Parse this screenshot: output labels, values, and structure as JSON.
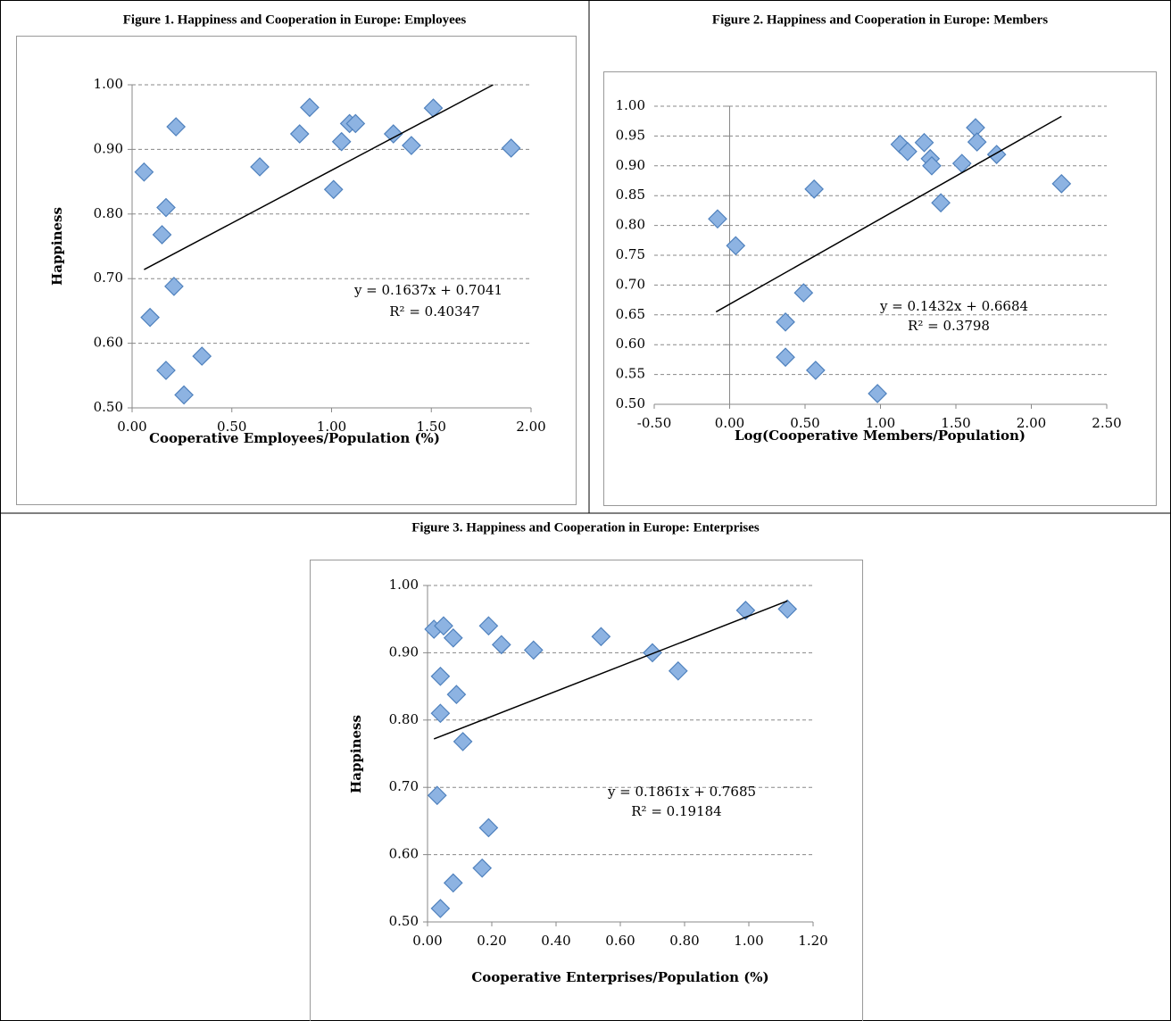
{
  "chart_data": [
    {
      "type": "scatter",
      "title": "Figure 1.  Happiness and Cooperation in Europe: Employees",
      "x_label": "Cooperative Employees/Population (%)",
      "y_label": "Happiness",
      "x": [
        0.06,
        0.22,
        0.17,
        0.15,
        0.21,
        0.09,
        0.17,
        0.35,
        0.26,
        0.64,
        0.84,
        0.89,
        1.01,
        1.05,
        1.09,
        1.12,
        1.31,
        1.4,
        1.51,
        1.9
      ],
      "values": [
        0.865,
        0.935,
        0.81,
        0.768,
        0.688,
        0.64,
        0.558,
        0.58,
        0.52,
        0.873,
        0.924,
        0.965,
        0.838,
        0.912,
        0.94,
        0.94,
        0.924,
        0.906,
        0.964,
        0.902
      ],
      "color": "#8db3e2",
      "trendline": {
        "x": [
          0.06,
          1.81
        ],
        "y": [
          0.714,
          1.0
        ]
      },
      "annotations": [
        "y = 0.1637x + 0.7041",
        "R² = 0.40347"
      ],
      "xlim": [
        0,
        2
      ],
      "ylim": [
        0.5,
        1.0
      ],
      "xticks": [
        {
          "value": 0,
          "label": "0.00"
        },
        {
          "value": 0.5,
          "label": "0.50"
        },
        {
          "value": 1,
          "label": "1.00"
        },
        {
          "value": 1.5,
          "label": "1.50"
        },
        {
          "value": 2,
          "label": "2.00"
        }
      ],
      "yticks": [
        {
          "value": 0.5,
          "label": "0.50"
        },
        {
          "value": 0.6,
          "label": "0.60"
        },
        {
          "value": 0.7,
          "label": "0.70"
        },
        {
          "value": 0.8,
          "label": "0.80"
        },
        {
          "value": 0.9,
          "label": "0.90"
        },
        {
          "value": 1.0,
          "label": "1.00"
        }
      ],
      "grid": true
    },
    {
      "type": "scatter",
      "title": "Figure 2. Happiness and Cooperation in Europe: Members",
      "x_label": "Log(Cooperative Members/Population)",
      "x": [
        -0.08,
        0.04,
        0.56,
        0.49,
        0.37,
        0.37,
        0.57,
        0.98,
        1.13,
        1.18,
        1.29,
        1.33,
        1.34,
        1.4,
        1.54,
        1.63,
        1.64,
        1.77,
        2.2
      ],
      "values": [
        0.811,
        0.766,
        0.861,
        0.687,
        0.638,
        0.579,
        0.557,
        0.518,
        0.936,
        0.924,
        0.939,
        0.912,
        0.9,
        0.838,
        0.904,
        0.964,
        0.94,
        0.919,
        0.87
      ],
      "color": "#8db3e2",
      "trendline": {
        "x": [
          -0.09,
          2.2
        ],
        "y": [
          0.655,
          0.983
        ]
      },
      "annotations": [
        "y = 0.1432x + 0.6684",
        "R² = 0.3798"
      ],
      "xlim": [
        -0.5,
        2.5
      ],
      "ylim": [
        0.5,
        1.0
      ],
      "y_axis_crosses": 0,
      "xticks": [
        {
          "value": -0.5,
          "label": "-0.50"
        },
        {
          "value": 0,
          "label": "0.00"
        },
        {
          "value": 0.5,
          "label": "0.50"
        },
        {
          "value": 1,
          "label": "1.00"
        },
        {
          "value": 1.5,
          "label": "1.50"
        },
        {
          "value": 2,
          "label": "2.00"
        },
        {
          "value": 2.5,
          "label": "2.50"
        }
      ],
      "yticks": [
        {
          "value": 0.5,
          "label": "0.50"
        },
        {
          "value": 0.55,
          "label": "0.55"
        },
        {
          "value": 0.6,
          "label": "0.60"
        },
        {
          "value": 0.65,
          "label": "0.65"
        },
        {
          "value": 0.7,
          "label": "0.70"
        },
        {
          "value": 0.75,
          "label": "0.75"
        },
        {
          "value": 0.8,
          "label": "0.80"
        },
        {
          "value": 0.85,
          "label": "0.85"
        },
        {
          "value": 0.9,
          "label": "0.90"
        },
        {
          "value": 0.95,
          "label": "0.95"
        },
        {
          "value": 1.0,
          "label": "1.00"
        }
      ],
      "grid": true
    },
    {
      "type": "scatter",
      "title": "Figure 3. Happiness and Cooperation in Europe: Enterprises",
      "x_label": "Cooperative Enterprises/Population (%)",
      "y_label": "Happiness",
      "x": [
        0.02,
        0.05,
        0.08,
        0.19,
        0.23,
        0.33,
        0.54,
        0.7,
        0.78,
        0.99,
        1.12,
        0.04,
        0.04,
        0.09,
        0.11,
        0.03,
        0.19,
        0.17,
        0.08,
        0.04
      ],
      "values": [
        0.935,
        0.94,
        0.922,
        0.94,
        0.912,
        0.904,
        0.924,
        0.9,
        0.873,
        0.963,
        0.965,
        0.865,
        0.81,
        0.838,
        0.768,
        0.688,
        0.64,
        0.58,
        0.558,
        0.52
      ],
      "color": "#8db3e2",
      "trendline": {
        "x": [
          0.02,
          1.12
        ],
        "y": [
          0.772,
          0.977
        ]
      },
      "annotations": [
        "y = 0.1861x + 0.7685",
        "R² = 0.19184"
      ],
      "xlim": [
        0,
        1.2
      ],
      "ylim": [
        0.5,
        1.0
      ],
      "xticks": [
        {
          "value": 0,
          "label": "0.00"
        },
        {
          "value": 0.2,
          "label": "0.20"
        },
        {
          "value": 0.4,
          "label": "0.40"
        },
        {
          "value": 0.6,
          "label": "0.60"
        },
        {
          "value": 0.8,
          "label": "0.80"
        },
        {
          "value": 1.0,
          "label": "1.00"
        },
        {
          "value": 1.2,
          "label": "1.20"
        }
      ],
      "yticks": [
        {
          "value": 0.5,
          "label": "0.50"
        },
        {
          "value": 0.6,
          "label": "0.60"
        },
        {
          "value": 0.7,
          "label": "0.70"
        },
        {
          "value": 0.8,
          "label": "0.80"
        },
        {
          "value": 0.9,
          "label": "0.90"
        },
        {
          "value": 1.0,
          "label": "1.00"
        }
      ],
      "grid": true
    }
  ]
}
